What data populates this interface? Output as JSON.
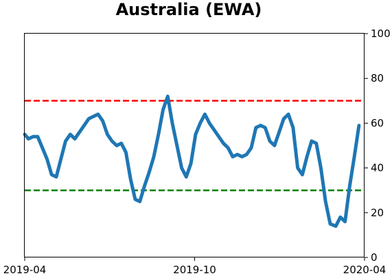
{
  "chart_data": {
    "type": "line",
    "title": "Australia (EWA)",
    "xlabel": "",
    "ylabel": "",
    "x_ticks": [
      "2019-04",
      "2019-10",
      "2020-04"
    ],
    "x_range": [
      "2019-04-01",
      "2020-04-01"
    ],
    "ylim": [
      0,
      100
    ],
    "y_ticks": [
      0,
      20,
      40,
      60,
      80,
      100
    ],
    "y_axis_side": "right",
    "grid": false,
    "legend": "none",
    "reference_lines": [
      {
        "y": 70,
        "color": "#ff0000",
        "style": "dashed"
      },
      {
        "y": 30,
        "color": "#008000",
        "style": "dashed"
      }
    ],
    "series": [
      {
        "color": "#1f77b4",
        "x": [
          "2019-04-01",
          "2019-04-05",
          "2019-04-10",
          "2019-04-15",
          "2019-04-20",
          "2019-04-25",
          "2019-04-30",
          "2019-05-05",
          "2019-05-10",
          "2019-05-15",
          "2019-05-20",
          "2019-05-25",
          "2019-05-30",
          "2019-06-04",
          "2019-06-09",
          "2019-06-14",
          "2019-06-19",
          "2019-06-24",
          "2019-06-29",
          "2019-07-04",
          "2019-07-09",
          "2019-07-14",
          "2019-07-19",
          "2019-07-24",
          "2019-07-29",
          "2019-08-03",
          "2019-08-08",
          "2019-08-13",
          "2019-08-18",
          "2019-08-23",
          "2019-08-28",
          "2019-09-02",
          "2019-09-07",
          "2019-09-12",
          "2019-09-17",
          "2019-09-22",
          "2019-09-27",
          "2019-10-02",
          "2019-10-07",
          "2019-10-12",
          "2019-10-17",
          "2019-10-22",
          "2019-10-27",
          "2019-11-01",
          "2019-11-06",
          "2019-11-11",
          "2019-11-16",
          "2019-11-21",
          "2019-11-26",
          "2019-12-01",
          "2019-12-06",
          "2019-12-11",
          "2019-12-16",
          "2019-12-21",
          "2019-12-26",
          "2019-12-31",
          "2020-01-05",
          "2020-01-10",
          "2020-01-15",
          "2020-01-20",
          "2020-01-25",
          "2020-01-30",
          "2020-02-04",
          "2020-02-09",
          "2020-02-14",
          "2020-02-19",
          "2020-02-24",
          "2020-03-01",
          "2020-03-06",
          "2020-03-11",
          "2020-03-16",
          "2020-03-21",
          "2020-03-26"
        ],
        "y": [
          55,
          53,
          54,
          54,
          49,
          44,
          37,
          36,
          44,
          52,
          55,
          53,
          56,
          59,
          62,
          63,
          64,
          61,
          55,
          52,
          50,
          51,
          47,
          35,
          26,
          25,
          32,
          38,
          45,
          55,
          66,
          72,
          60,
          50,
          40,
          36,
          42,
          55,
          60,
          64,
          60,
          57,
          54,
          51,
          49,
          45,
          46,
          45,
          46,
          49,
          58,
          59,
          58,
          52,
          50,
          56,
          62,
          64,
          58,
          40,
          37,
          45,
          52,
          51,
          40,
          25,
          15,
          14,
          18,
          16,
          32,
          45,
          59
        ]
      }
    ]
  }
}
